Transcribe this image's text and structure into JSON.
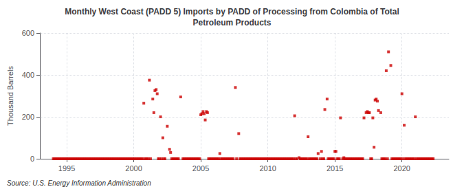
{
  "chart_data": {
    "type": "scatter",
    "title": "Monthly West Coast (PADD 5) Imports by PADD of Processing from Colombia of Total\nPetroleum Products",
    "ylabel": "Thousand Barrels",
    "annotation": "Source: U.S. Energy Information Administration",
    "color": "#cc0000",
    "marker": "square",
    "grid": true,
    "xlim": [
      1993.0,
      2023.5
    ],
    "xticks": [
      1995,
      2000,
      2005,
      2010,
      2015,
      2020
    ],
    "ylim": [
      0,
      600
    ],
    "yticks": [
      0,
      200,
      400,
      600
    ],
    "x": [
      1994.0,
      1994.08,
      1994.17,
      1994.25,
      1994.33,
      1994.42,
      1994.5,
      1994.58,
      1994.67,
      1994.75,
      1994.83,
      1994.92,
      1995.0,
      1995.08,
      1995.17,
      1995.25,
      1995.33,
      1995.42,
      1995.5,
      1995.58,
      1995.67,
      1995.75,
      1995.83,
      1995.92,
      1996.0,
      1996.08,
      1996.17,
      1996.25,
      1996.33,
      1996.42,
      1996.5,
      1996.58,
      1996.67,
      1996.75,
      1996.83,
      1996.92,
      1997.0,
      1997.08,
      1997.17,
      1997.25,
      1997.33,
      1997.42,
      1997.5,
      1997.58,
      1997.67,
      1997.75,
      1997.83,
      1997.92,
      1998.0,
      1998.08,
      1998.17,
      1998.25,
      1998.33,
      1998.42,
      1998.5,
      1998.58,
      1998.67,
      1998.75,
      1998.83,
      1998.92,
      1999.0,
      1999.08,
      1999.17,
      1999.25,
      1999.33,
      1999.42,
      1999.5,
      1999.58,
      1999.67,
      1999.75,
      1999.83,
      1999.92,
      2000.0,
      2000.08,
      2000.17,
      2000.25,
      2000.33,
      2000.42,
      2000.5,
      2000.58,
      2000.67,
      2000.75,
      2000.83,
      2000.92,
      2001.0,
      2001.08,
      2001.17,
      2001.25,
      2001.42,
      2001.5,
      2001.58,
      2001.67,
      2001.75,
      2001.83,
      2001.92,
      2002.0,
      2002.08,
      2002.17,
      2002.25,
      2002.33,
      2002.5,
      2002.67,
      2002.75,
      2002.83,
      2002.92,
      2003.0,
      2003.08,
      2003.17,
      2003.25,
      2003.33,
      2003.5,
      2003.67,
      2003.75,
      2003.83,
      2003.92,
      2004.0,
      2004.08,
      2004.17,
      2004.25,
      2004.33,
      2004.42,
      2004.5,
      2004.58,
      2004.67,
      2004.75,
      2004.83,
      2004.92,
      2005.0,
      2005.08,
      2005.17,
      2005.25,
      2005.33,
      2005.42,
      2005.5,
      2005.58,
      2005.67,
      2005.75,
      2005.83,
      2005.92,
      2006.0,
      2006.08,
      2006.17,
      2006.25,
      2006.33,
      2006.42,
      2006.5,
      2006.58,
      2006.67,
      2006.75,
      2006.83,
      2006.92,
      2007.0,
      2007.08,
      2007.17,
      2007.25,
      2007.33,
      2007.42,
      2007.58,
      2007.67,
      2007.83,
      2007.92,
      2008.0,
      2008.08,
      2008.17,
      2008.25,
      2008.33,
      2008.42,
      2008.5,
      2008.58,
      2008.67,
      2008.75,
      2008.83,
      2008.92,
      2009.0,
      2009.08,
      2009.17,
      2009.25,
      2009.33,
      2009.42,
      2009.5,
      2009.58,
      2009.67,
      2009.75,
      2009.83,
      2009.92,
      2010.0,
      2010.08,
      2010.17,
      2010.25,
      2010.33,
      2010.42,
      2010.5,
      2010.58,
      2010.67,
      2010.75,
      2010.83,
      2010.92,
      2011.0,
      2011.08,
      2011.17,
      2011.25,
      2011.33,
      2011.42,
      2011.5,
      2011.58,
      2011.67,
      2011.75,
      2011.83,
      2011.92,
      2012.0,
      2012.08,
      2012.17,
      2012.33,
      2012.42,
      2012.5,
      2012.58,
      2012.67,
      2012.75,
      2012.83,
      2012.92,
      2013.0,
      2013.08,
      2013.17,
      2013.25,
      2013.33,
      2013.42,
      2013.5,
      2013.58,
      2013.67,
      2013.75,
      2013.92,
      2014.0,
      2014.08,
      2014.17,
      2014.25,
      2014.42,
      2014.5,
      2014.58,
      2014.67,
      2014.75,
      2014.83,
      2014.92,
      2015.0,
      2015.08,
      2015.17,
      2015.25,
      2015.33,
      2015.42,
      2015.58,
      2015.67,
      2015.75,
      2015.83,
      2015.92,
      2016.0,
      2016.08,
      2016.17,
      2016.25,
      2016.33,
      2016.42,
      2016.5,
      2016.58,
      2016.67,
      2016.75,
      2016.83,
      2016.92,
      2017.0,
      2017.08,
      2017.17,
      2017.33,
      2017.42,
      2017.5,
      2017.58,
      2017.67,
      2017.75,
      2017.83,
      2017.92,
      2018.0,
      2018.08,
      2018.17,
      2018.25,
      2018.42,
      2018.5,
      2018.58,
      2018.67,
      2018.75,
      2018.83,
      2018.92,
      2019.0,
      2019.17,
      2019.25,
      2019.33,
      2019.42,
      2019.5,
      2019.58,
      2019.67,
      2019.75,
      2019.83,
      2019.92,
      2020.0,
      2020.08,
      2020.17,
      2020.25,
      2020.33,
      2020.42,
      2020.5,
      2020.58,
      2020.67,
      2020.75,
      2020.83,
      2020.92,
      2021.0,
      2021.08,
      2021.17,
      2021.25,
      2021.33,
      2021.42,
      2021.5,
      2021.58,
      2021.67,
      2021.75,
      2021.83,
      2021.92,
      2022.0,
      2022.08,
      2022.17,
      2022.25,
      2022.33
    ],
    "values": [
      0,
      0,
      0,
      0,
      0,
      0,
      0,
      0,
      0,
      0,
      0,
      0,
      0,
      0,
      0,
      0,
      0,
      0,
      0,
      0,
      0,
      0,
      0,
      0,
      0,
      0,
      0,
      0,
      0,
      0,
      0,
      0,
      0,
      0,
      0,
      0,
      0,
      0,
      0,
      0,
      0,
      0,
      0,
      0,
      0,
      0,
      0,
      0,
      0,
      0,
      0,
      0,
      0,
      0,
      0,
      0,
      0,
      0,
      0,
      0,
      0,
      0,
      0,
      0,
      0,
      0,
      0,
      0,
      0,
      0,
      0,
      0,
      0,
      0,
      0,
      0,
      0,
      0,
      0,
      0,
      0,
      265,
      0,
      0,
      0,
      0,
      375,
      0,
      285,
      220,
      325,
      330,
      310,
      0,
      0,
      200,
      0,
      100,
      0,
      0,
      155,
      45,
      30,
      0,
      0,
      0,
      0,
      0,
      0,
      0,
      295,
      0,
      0,
      0,
      0,
      0,
      0,
      0,
      0,
      0,
      0,
      0,
      0,
      0,
      0,
      0,
      0,
      210,
      215,
      225,
      215,
      185,
      225,
      220,
      0,
      0,
      0,
      0,
      0,
      0,
      0,
      0,
      0,
      0,
      25,
      0,
      0,
      0,
      0,
      0,
      0,
      0,
      0,
      0,
      0,
      0,
      0,
      340,
      0,
      120,
      0,
      0,
      0,
      0,
      0,
      0,
      0,
      0,
      0,
      0,
      0,
      0,
      0,
      0,
      0,
      0,
      0,
      0,
      0,
      0,
      0,
      0,
      0,
      0,
      0,
      0,
      0,
      0,
      0,
      0,
      0,
      0,
      0,
      0,
      0,
      0,
      0,
      0,
      0,
      0,
      0,
      0,
      0,
      0,
      0,
      0,
      0,
      0,
      0,
      205,
      0,
      0,
      5,
      0,
      0,
      0,
      0,
      0,
      0,
      0,
      105,
      0,
      0,
      0,
      0,
      0,
      0,
      0,
      0,
      25,
      0,
      35,
      0,
      0,
      235,
      285,
      0,
      0,
      0,
      0,
      0,
      0,
      35,
      35,
      0,
      0,
      0,
      195,
      0,
      5,
      0,
      0,
      0,
      0,
      0,
      0,
      0,
      0,
      0,
      0,
      0,
      0,
      0,
      0,
      0,
      0,
      0,
      195,
      220,
      225,
      220,
      220,
      0,
      0,
      195,
      55,
      280,
      285,
      275,
      230,
      220,
      0,
      0,
      0,
      0,
      420,
      0,
      510,
      445,
      0,
      0,
      0,
      0,
      0,
      0,
      0,
      0,
      0,
      310,
      0,
      160,
      0,
      0,
      0,
      0,
      0,
      0,
      0,
      0,
      0,
      200,
      0,
      0,
      0,
      0,
      0,
      0,
      0,
      0,
      0,
      0,
      0,
      0,
      0,
      0,
      0,
      0
    ]
  }
}
